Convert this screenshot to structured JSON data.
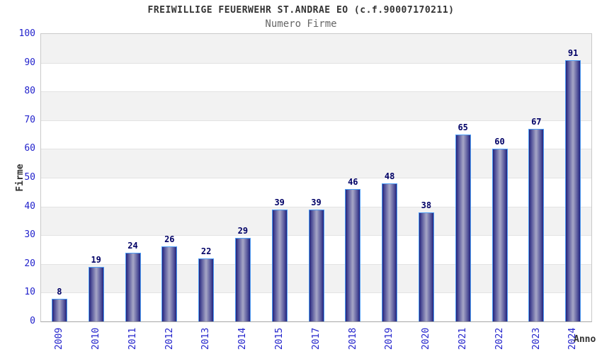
{
  "chart_data": {
    "type": "bar",
    "title": "FREIWILLIGE FEUERWEHR ST.ANDRAE EO (c.f.90007170211)",
    "subtitle": "Numero Firme",
    "xlabel": "Anno",
    "ylabel": "Firme",
    "categories": [
      "2009",
      "2010",
      "2011",
      "2012",
      "2013",
      "2014",
      "2015",
      "2017",
      "2018",
      "2019",
      "2020",
      "2021",
      "2022",
      "2023",
      "2024"
    ],
    "values": [
      8,
      19,
      24,
      26,
      22,
      29,
      39,
      39,
      46,
      48,
      38,
      65,
      60,
      67,
      91
    ],
    "ylim": [
      0,
      100
    ],
    "ytick_step": 10,
    "grid": "alternating-horizontal-bands",
    "legend": "none",
    "colors": {
      "title": "#333333",
      "subtitle": "#666666",
      "tick_label": "#2222cc",
      "value_label": "#000066",
      "axis_title": "#333333",
      "stripe_band": "#f2f2f2",
      "base_band": "#ffffff",
      "plot_border": "#c9c9c9",
      "bar_border": "#4f9ef5",
      "bar_edge_dark": "#22227c",
      "bar_mid": "#4b4b95",
      "bar_center_light": "#a2a2c4"
    }
  }
}
